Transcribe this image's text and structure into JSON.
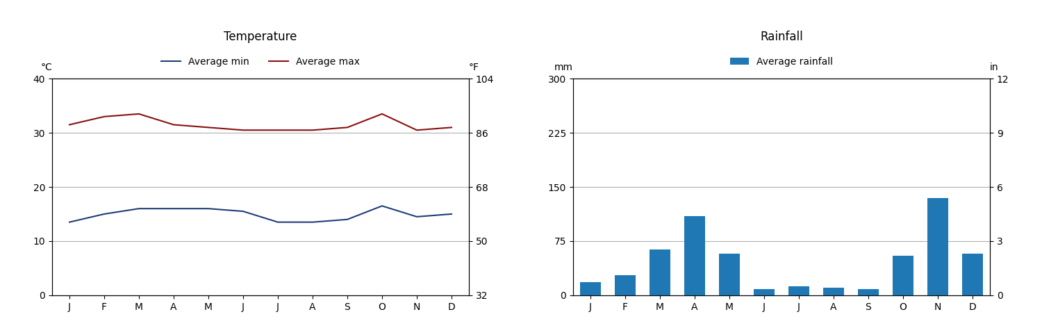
{
  "chart_data": [
    {
      "type": "line",
      "title": "Temperature",
      "categories": [
        "J",
        "F",
        "M",
        "A",
        "M",
        "J",
        "J",
        "A",
        "S",
        "O",
        "N",
        "D"
      ],
      "y_label": "°C",
      "y2_label": "°F",
      "series": [
        {
          "name": "Average min",
          "color": "#1f3d7a",
          "values": [
            13.5,
            15.0,
            16.0,
            16.0,
            16.0,
            15.5,
            13.5,
            13.5,
            14.0,
            16.5,
            14.5,
            15.0
          ]
        },
        {
          "name": "Average max",
          "color": "#8b1010",
          "values": [
            31.5,
            33.0,
            33.5,
            31.5,
            31.0,
            30.5,
            30.5,
            30.5,
            31.0,
            33.5,
            30.5,
            31.0
          ]
        }
      ],
      "ylim": [
        0,
        40
      ],
      "yticks": [
        0,
        10,
        20,
        30,
        40
      ],
      "y2lim": [
        32,
        104
      ],
      "y2ticks": [
        32,
        50,
        68,
        86,
        104
      ],
      "grid": true,
      "legend": "upper center"
    },
    {
      "type": "bar",
      "title": "Rainfall",
      "categories": [
        "J",
        "F",
        "M",
        "A",
        "M",
        "J",
        "J",
        "A",
        "S",
        "O",
        "N",
        "D"
      ],
      "y_label": "mm",
      "y2_label": "in",
      "series": [
        {
          "name": "Average rainfall",
          "values": [
            18,
            28,
            63,
            110,
            58,
            8,
            12,
            10,
            8,
            55,
            135,
            58
          ]
        }
      ],
      "ylim": [
        0,
        300
      ],
      "yticks": [
        0,
        75,
        150,
        225,
        300
      ],
      "y2lim": [
        0,
        12
      ],
      "y2ticks": [
        0,
        3,
        6,
        9,
        12
      ],
      "grid": true,
      "legend": "upper center"
    }
  ]
}
